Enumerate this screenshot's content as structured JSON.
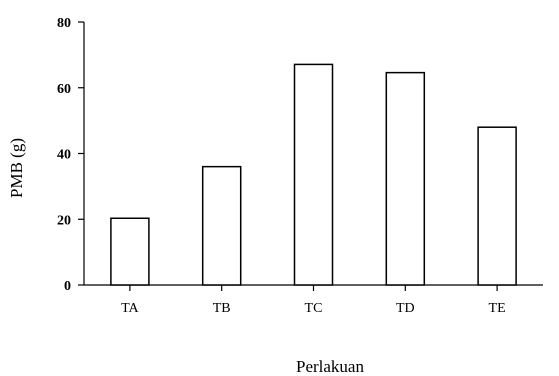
{
  "chart_data": {
    "type": "bar",
    "categories": [
      "TA",
      "TB",
      "TC",
      "TD",
      "TE"
    ],
    "values": [
      20.3,
      36.0,
      67.1,
      64.6,
      48.0
    ],
    "title": "",
    "xlabel": "Perlakuan",
    "ylabel": "PMB (g)",
    "ylim": [
      0,
      80
    ],
    "yticks": [
      "0",
      "20",
      "40",
      "60",
      "80"
    ],
    "grid": false,
    "bar_fill": "#ffffff",
    "bar_stroke": "#000000"
  }
}
